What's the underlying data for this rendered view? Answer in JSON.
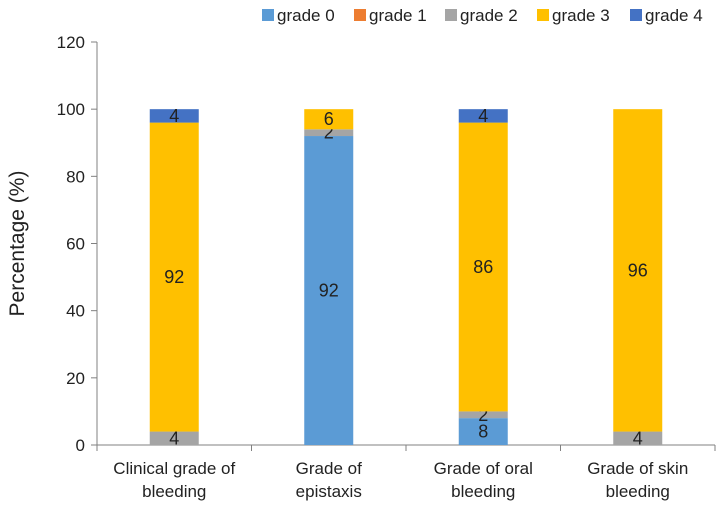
{
  "chart_data": {
    "type": "bar",
    "stacked": true,
    "title": "",
    "xlabel": "",
    "ylabel": "Percentage (%)",
    "ylim": [
      0,
      120
    ],
    "yticks": [
      0,
      20,
      40,
      60,
      80,
      100,
      120
    ],
    "grid": false,
    "legend_position": "top-right",
    "categories": [
      [
        "Clinical grade of",
        "bleeding"
      ],
      [
        "Grade of",
        "epistaxis"
      ],
      [
        "Grade of oral",
        "bleeding"
      ],
      [
        "Grade of skin",
        "bleeding"
      ]
    ],
    "series": [
      {
        "name": "grade 0",
        "color": "#5b9bd5",
        "values": [
          0,
          92,
          8,
          0
        ]
      },
      {
        "name": "grade 1",
        "color": "#ed7d31",
        "values": [
          0,
          0,
          0,
          0
        ]
      },
      {
        "name": "grade 2",
        "color": "#a5a5a5",
        "values": [
          4,
          2,
          2,
          4
        ]
      },
      {
        "name": "grade 3",
        "color": "#ffc000",
        "values": [
          92,
          6,
          86,
          96
        ]
      },
      {
        "name": "grade 4",
        "color": "#4472c4",
        "values": [
          4,
          0,
          4,
          0
        ]
      }
    ]
  }
}
